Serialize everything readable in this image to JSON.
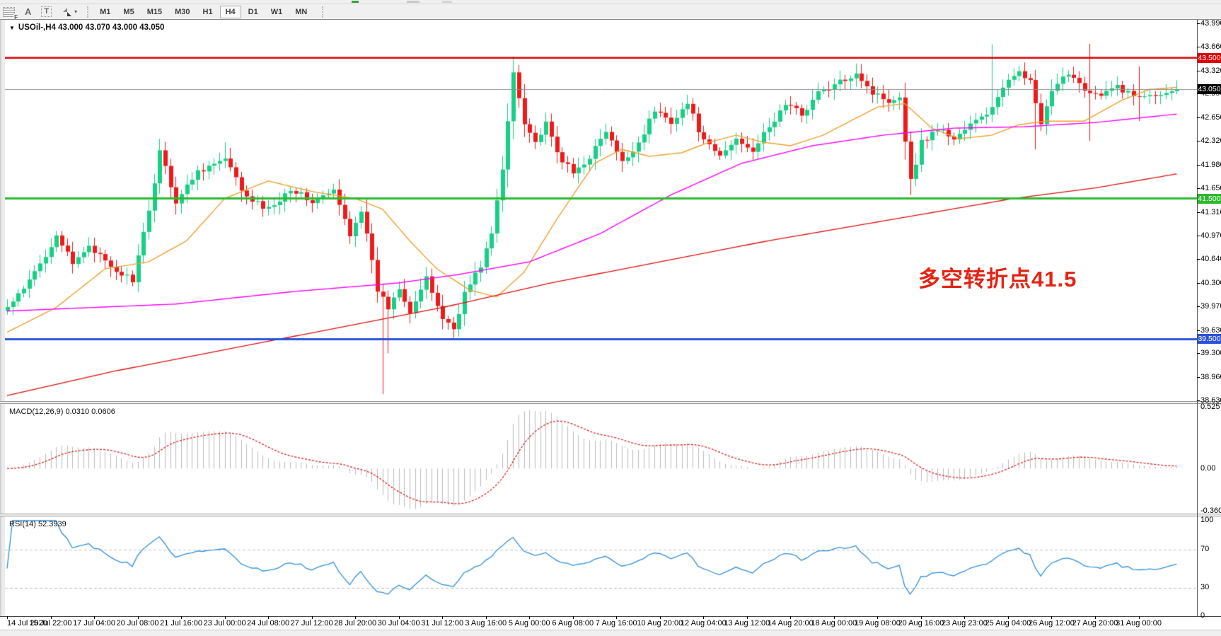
{
  "toolbar": {
    "timeframes": [
      "M1",
      "M5",
      "M15",
      "M30",
      "H1",
      "H4",
      "D1",
      "W1",
      "MN"
    ],
    "active_timeframe": "H4",
    "icon_f": "F",
    "icon_a": "A",
    "icon_t": "T",
    "caret": "▾"
  },
  "chart": {
    "title_caret": "▼",
    "title": "USOil-,H4  43.000 43.070 43.000 43.050",
    "annotation": {
      "text": "多空转折点41.5",
      "color": "#e42313"
    }
  },
  "panels": {
    "macd": {
      "label": "MACD(12,26,9) 0.0310 0.0606",
      "scale_labels": [
        "0.5257",
        "0.00",
        "-0.3603"
      ],
      "scale_values": [
        0.5257,
        0,
        -0.3603
      ]
    },
    "rsi": {
      "label": "RSI(14) 52.3939",
      "scale_labels": [
        "100",
        "70",
        "30",
        "0"
      ],
      "scale_values": [
        100,
        70,
        30,
        0
      ]
    }
  },
  "chart_data": {
    "type": "candlestick",
    "symbol": "USOil-",
    "timeframe": "H4",
    "current_bar_ohlc": [
      43.0,
      43.07,
      43.0,
      43.05
    ],
    "bars": 216,
    "colors": {
      "bull": "#16d085",
      "bear": "#ee1a1a",
      "ma_fast": "#f0a030",
      "ma_mid": "#ff00ff",
      "ma_slow": "#e01010",
      "hline_red": "#dd0000",
      "hline_green": "#2db92d",
      "hline_blue": "#2b52d8",
      "price_line": "#8c8c8c",
      "price_badge_bg": "#000000",
      "macd_histogram": "#bbbbbb",
      "macd_signal": "#dd2222",
      "rsi_line": "#2f8fdd",
      "rsi_levels": "#c0c0c0"
    },
    "y_axis": {
      "max": 43.99,
      "min": 38.63,
      "tick_labels": [
        "43.990",
        "43.660",
        "43.320",
        "42.990",
        "42.650",
        "42.320",
        "41.980",
        "41.650",
        "41.310",
        "40.970",
        "40.640",
        "40.300",
        "39.970",
        "39.630",
        "39.300",
        "38.960",
        "38.630"
      ],
      "tick_values": [
        43.99,
        43.66,
        43.32,
        42.99,
        42.65,
        42.32,
        41.98,
        41.65,
        41.31,
        40.97,
        40.64,
        40.3,
        39.97,
        39.63,
        39.3,
        38.96,
        38.63
      ]
    },
    "x_axis": {
      "tick_every_bars": 8,
      "labels": [
        "14 Jul 2020",
        "15 Jul 22:00",
        "17 Jul 04:00",
        "20 Jul 08:00",
        "21 Jul 16:00",
        "23 Jul 00:00",
        "24 Jul 08:00",
        "27 Jul 12:00",
        "28 Jul 20:00",
        "30 Jul 04:00",
        "31 Jul 12:00",
        "3 Aug 16:00",
        "5 Aug 00:00",
        "6 Aug 08:00",
        "7 Aug 16:00",
        "10 Aug 20:00",
        "12 Aug 04:00",
        "13 Aug 12:00",
        "14 Aug 20:00",
        "18 Aug 00:00",
        "19 Aug 08:00",
        "20 Aug 16:00",
        "23 Aug 23:00",
        "25 Aug 04:00",
        "26 Aug 12:00",
        "27 Aug 20:00",
        "31 Aug 00:00"
      ]
    },
    "hlines": [
      {
        "value": 43.5,
        "label": "43.500",
        "color": "#dd0000",
        "line_width": 2.5
      },
      {
        "value": 41.5,
        "label": "41.500",
        "color": "#2db92d",
        "line_width": 3
      },
      {
        "value": 39.5,
        "label": "39.500",
        "color": "#2b52d8",
        "line_width": 3
      }
    ],
    "current_price": {
      "value": 43.05,
      "label": "43.050"
    },
    "close_keyframes": [
      [
        0,
        39.95
      ],
      [
        3,
        40.2
      ],
      [
        7,
        40.7
      ],
      [
        9,
        41.0
      ],
      [
        12,
        40.55
      ],
      [
        15,
        40.85
      ],
      [
        19,
        40.5
      ],
      [
        23,
        40.35
      ],
      [
        26,
        41.3
      ],
      [
        28,
        42.2
      ],
      [
        31,
        41.45
      ],
      [
        35,
        41.9
      ],
      [
        40,
        42.05
      ],
      [
        44,
        41.5
      ],
      [
        48,
        41.35
      ],
      [
        52,
        41.65
      ],
      [
        56,
        41.45
      ],
      [
        60,
        41.6
      ],
      [
        63,
        41.0
      ],
      [
        65,
        41.35
      ],
      [
        68,
        40.2
      ],
      [
        70,
        39.95
      ],
      [
        72,
        40.25
      ],
      [
        74,
        39.9
      ],
      [
        77,
        40.35
      ],
      [
        80,
        39.8
      ],
      [
        82,
        39.65
      ],
      [
        84,
        40.15
      ],
      [
        87,
        40.55
      ],
      [
        89,
        41.0
      ],
      [
        91,
        41.9
      ],
      [
        93,
        43.3
      ],
      [
        95,
        42.6
      ],
      [
        97,
        42.3
      ],
      [
        99,
        42.55
      ],
      [
        101,
        42.15
      ],
      [
        104,
        41.85
      ],
      [
        107,
        42.1
      ],
      [
        110,
        42.45
      ],
      [
        113,
        42.0
      ],
      [
        116,
        42.3
      ],
      [
        119,
        42.75
      ],
      [
        122,
        42.6
      ],
      [
        125,
        42.85
      ],
      [
        128,
        42.3
      ],
      [
        131,
        42.1
      ],
      [
        134,
        42.35
      ],
      [
        137,
        42.2
      ],
      [
        140,
        42.5
      ],
      [
        143,
        42.85
      ],
      [
        146,
        42.7
      ],
      [
        149,
        43.0
      ],
      [
        152,
        43.1
      ],
      [
        156,
        43.3
      ],
      [
        159,
        43.0
      ],
      [
        162,
        42.9
      ],
      [
        164,
        42.95
      ],
      [
        166,
        41.75
      ],
      [
        168,
        42.3
      ],
      [
        171,
        42.5
      ],
      [
        174,
        42.35
      ],
      [
        177,
        42.55
      ],
      [
        180,
        42.7
      ],
      [
        183,
        43.05
      ],
      [
        186,
        43.35
      ],
      [
        188,
        43.15
      ],
      [
        190,
        42.55
      ],
      [
        192,
        43.0
      ],
      [
        195,
        43.3
      ],
      [
        197,
        43.15
      ],
      [
        199,
        43.0
      ],
      [
        201,
        42.95
      ],
      [
        204,
        43.1
      ],
      [
        207,
        42.95
      ],
      [
        210,
        43.0
      ],
      [
        213,
        43.0
      ],
      [
        215,
        43.05
      ]
    ],
    "wick_extremes": [
      {
        "i": 28,
        "high": 42.35
      },
      {
        "i": 40,
        "high": 42.3
      },
      {
        "i": 69,
        "low": 38.72
      },
      {
        "i": 70,
        "low": 39.3
      },
      {
        "i": 82,
        "low": 39.52
      },
      {
        "i": 93,
        "high": 43.52
      },
      {
        "i": 156,
        "high": 43.42
      },
      {
        "i": 166,
        "low": 41.55
      },
      {
        "i": 181,
        "high": 43.69
      },
      {
        "i": 189,
        "low": 42.2
      },
      {
        "i": 199,
        "high": 43.7,
        "low": 42.32
      },
      {
        "i": 208,
        "high": 43.38,
        "low": 42.6
      }
    ],
    "moving_averages": [
      {
        "name": "ma-fast-orange",
        "color": "#f0a030",
        "width": 1.4,
        "keyframes": [
          [
            0,
            39.6
          ],
          [
            9,
            39.95
          ],
          [
            18,
            40.5
          ],
          [
            26,
            40.6
          ],
          [
            33,
            40.9
          ],
          [
            40,
            41.5
          ],
          [
            48,
            41.75
          ],
          [
            56,
            41.6
          ],
          [
            64,
            41.5
          ],
          [
            69,
            41.35
          ],
          [
            74,
            40.9
          ],
          [
            79,
            40.5
          ],
          [
            85,
            40.2
          ],
          [
            90,
            40.1
          ],
          [
            95,
            40.45
          ],
          [
            101,
            41.2
          ],
          [
            108,
            42.0
          ],
          [
            113,
            42.2
          ],
          [
            118,
            42.1
          ],
          [
            124,
            42.15
          ],
          [
            129,
            42.3
          ],
          [
            134,
            42.4
          ],
          [
            139,
            42.3
          ],
          [
            144,
            42.25
          ],
          [
            150,
            42.4
          ],
          [
            155,
            42.6
          ],
          [
            160,
            42.8
          ],
          [
            165,
            42.85
          ],
          [
            170,
            42.5
          ],
          [
            175,
            42.35
          ],
          [
            181,
            42.4
          ],
          [
            186,
            42.55
          ],
          [
            191,
            42.6
          ],
          [
            198,
            42.6
          ],
          [
            205,
            42.9
          ],
          [
            210,
            43.05
          ],
          [
            215,
            43.08
          ]
        ]
      },
      {
        "name": "ma-mid-magenta",
        "color": "#ff00ff",
        "width": 1.4,
        "keyframes": [
          [
            0,
            39.9
          ],
          [
            31,
            40.0
          ],
          [
            53,
            40.18
          ],
          [
            72,
            40.3
          ],
          [
            83,
            40.42
          ],
          [
            96,
            40.6
          ],
          [
            109,
            41.0
          ],
          [
            122,
            41.55
          ],
          [
            135,
            42.0
          ],
          [
            148,
            42.25
          ],
          [
            161,
            42.4
          ],
          [
            174,
            42.5
          ],
          [
            187,
            42.52
          ],
          [
            200,
            42.58
          ],
          [
            215,
            42.7
          ]
        ]
      },
      {
        "name": "ma-slow-red",
        "color": "#e01010",
        "width": 1.3,
        "keyframes": [
          [
            0,
            38.7
          ],
          [
            20,
            39.05
          ],
          [
            40,
            39.35
          ],
          [
            60,
            39.65
          ],
          [
            80,
            39.95
          ],
          [
            100,
            40.3
          ],
          [
            120,
            40.6
          ],
          [
            140,
            40.9
          ],
          [
            155,
            41.1
          ],
          [
            170,
            41.3
          ],
          [
            185,
            41.5
          ],
          [
            200,
            41.65
          ],
          [
            215,
            41.85
          ]
        ]
      }
    ],
    "indicators": [
      {
        "type": "MACD",
        "params": [
          12,
          26,
          9
        ],
        "current_values": [
          0.031,
          0.0606
        ],
        "scale_max": 0.5257,
        "scale_min": -0.3603
      },
      {
        "type": "RSI",
        "params": [
          14
        ],
        "current_value": 52.3939,
        "levels": [
          30,
          70
        ],
        "range": [
          0,
          100
        ]
      }
    ]
  }
}
